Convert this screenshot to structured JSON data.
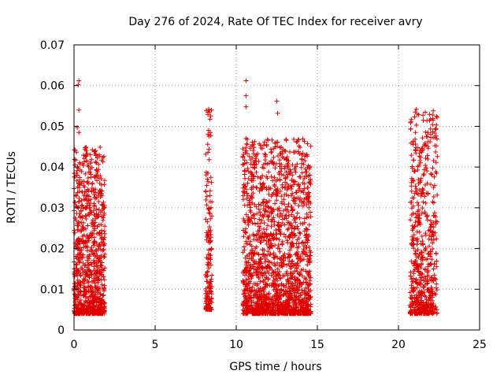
{
  "chart_data": {
    "type": "scatter",
    "title": "Day 276 of 2024, Rate Of TEC Index for receiver avry",
    "xlabel": "GPS time / hours",
    "ylabel": "ROTI / TECUs",
    "xlim": [
      0,
      25
    ],
    "ylim": [
      0,
      0.07
    ],
    "xticks": [
      0,
      5,
      10,
      15,
      20,
      25
    ],
    "xtick_labels": [
      "0",
      "5",
      "10",
      "15",
      "20",
      "25"
    ],
    "yticks": [
      0,
      0.01,
      0.02,
      0.03,
      0.04,
      0.05,
      0.06,
      0.07
    ],
    "ytick_labels": [
      "0",
      "0.01",
      "0.02",
      "0.03",
      "0.04",
      "0.05",
      "0.06",
      "0.07"
    ],
    "grid": true,
    "marker": "plus",
    "color": "#e00000",
    "clusters": [
      {
        "x_range": [
          0.0,
          1.9
        ],
        "y_range": [
          0.004,
          0.045
        ],
        "count": 900
      },
      {
        "x_range": [
          8.1,
          8.5
        ],
        "y_range": [
          0.005,
          0.054
        ],
        "count": 160
      },
      {
        "x_range": [
          10.4,
          14.6
        ],
        "y_range": [
          0.004,
          0.047
        ],
        "count": 1800
      },
      {
        "x_range": [
          20.7,
          22.4
        ],
        "y_range": [
          0.004,
          0.054
        ],
        "count": 600
      }
    ],
    "outliers": [
      {
        "x": 0.3,
        "y": 0.0612
      },
      {
        "x": 0.25,
        "y": 0.0602
      },
      {
        "x": 0.3,
        "y": 0.054
      },
      {
        "x": 0.2,
        "y": 0.0497
      },
      {
        "x": 0.3,
        "y": 0.0485
      },
      {
        "x": 8.3,
        "y": 0.0542
      },
      {
        "x": 8.35,
        "y": 0.0535
      },
      {
        "x": 8.3,
        "y": 0.049
      },
      {
        "x": 8.4,
        "y": 0.0485
      },
      {
        "x": 10.6,
        "y": 0.0612
      },
      {
        "x": 10.6,
        "y": 0.0575
      },
      {
        "x": 10.6,
        "y": 0.0548
      },
      {
        "x": 10.6,
        "y": 0.047
      },
      {
        "x": 10.6,
        "y": 0.044
      },
      {
        "x": 12.5,
        "y": 0.0562
      },
      {
        "x": 12.55,
        "y": 0.0532
      },
      {
        "x": 14.2,
        "y": 0.0463
      },
      {
        "x": 21.1,
        "y": 0.0542
      },
      {
        "x": 21.15,
        "y": 0.053
      },
      {
        "x": 21.1,
        "y": 0.0503
      },
      {
        "x": 21.05,
        "y": 0.0485
      },
      {
        "x": 21.5,
        "y": 0.0442
      }
    ]
  }
}
